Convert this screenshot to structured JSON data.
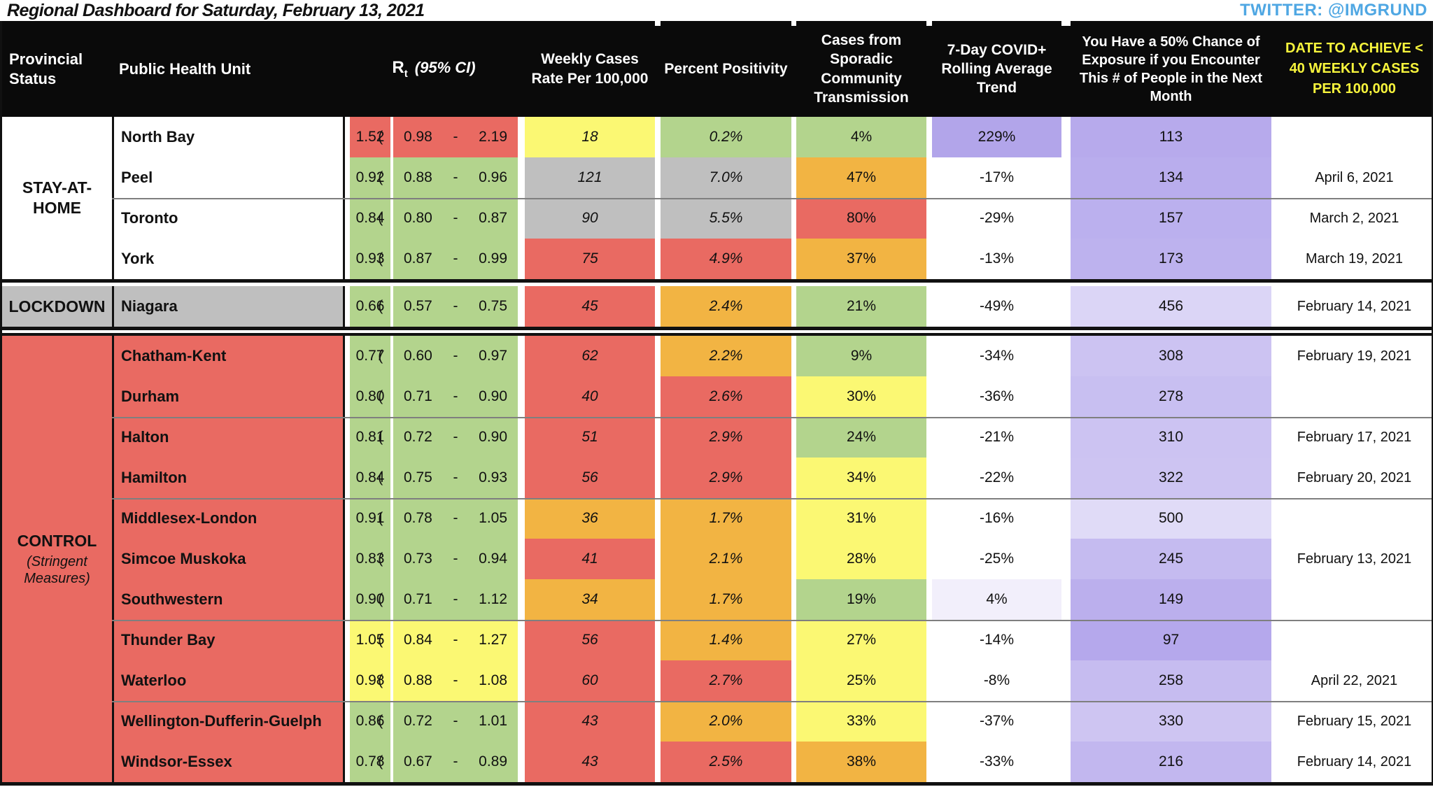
{
  "page": {
    "title": "Regional Dashboard for Saturday, February 13, 2021",
    "twitter": "TWITTER: @IMGRUND"
  },
  "colors": {
    "red": "#E96A62",
    "orange": "#F2B443",
    "yellow": "#FBF873",
    "green": "#B3D48D",
    "gray": "#BFBFBF",
    "white": "#FFFFFF",
    "purple": "#B2A5EA",
    "header_black": "#0A0A0A",
    "header_yellow_text": "#F7F43C",
    "twitter_blue": "#4FA7E3",
    "divider_gray": "#7F7F7F"
  },
  "table": {
    "headers": {
      "provincial_status": "Provincial Status",
      "public_health_unit": "Public Health Unit",
      "rt": "R",
      "rt_sub": "t",
      "rt_ci": "(95% CI)",
      "weekly_cases": "Weekly Cases Rate Per 100,000",
      "percent_positivity": "Percent Positivity",
      "sporadic": "Cases from Sporadic Community Transmission",
      "trend": "7-Day COVID+ Rolling Average Trend",
      "exposure": "You Have a 50% Chance of Exposure if you Encounter This # of People in the Next Month",
      "date_achieve": "DATE TO ACHIEVE < 40 WEEKLY CASES PER 100,000"
    },
    "sections": [
      {
        "status": "STAY-AT-HOME",
        "status_bg": "white",
        "rows": [
          {
            "name": "North Bay",
            "name_bg": "white",
            "rt": "1.52",
            "rt_c": "red",
            "ci": "(  0.98  -  2.19  )",
            "weekly": "18",
            "weekly_c": "yellow",
            "pos": "0.2%",
            "pos_c": "green",
            "spor": "4%",
            "spor_c": "green",
            "trend": "229%",
            "trend_bg": "#B2A5EA",
            "exp": "113",
            "exp_bg": "#B7AAEC",
            "date": ""
          },
          {
            "name": "Peel",
            "name_bg": "white",
            "rt": "0.92",
            "rt_c": "green",
            "ci": "(  0.88  -  0.96  )",
            "weekly": "121",
            "weekly_c": "gray",
            "pos": "7.0%",
            "pos_c": "gray",
            "spor": "47%",
            "spor_c": "orange",
            "trend": "-17%",
            "trend_bg": "#FFFFFF",
            "exp": "134",
            "exp_bg": "#B9ADED",
            "date": "April 6, 2021"
          },
          {
            "name": "Toronto",
            "name_bg": "white",
            "div": true,
            "rt": "0.84",
            "rt_c": "green",
            "ci": "(  0.80  -  0.87  )",
            "weekly": "90",
            "weekly_c": "gray",
            "pos": "5.5%",
            "pos_c": "gray",
            "spor": "80%",
            "spor_c": "red",
            "trend": "-29%",
            "trend_bg": "#FFFFFF",
            "exp": "157",
            "exp_bg": "#BBB0EE",
            "date": "March 2, 2021"
          },
          {
            "name": "York",
            "name_bg": "white",
            "rt": "0.93",
            "rt_c": "green",
            "ci": "(  0.87  -  0.99  )",
            "weekly": "75",
            "weekly_c": "red",
            "pos": "4.9%",
            "pos_c": "red",
            "spor": "37%",
            "spor_c": "orange",
            "trend": "-13%",
            "trend_bg": "#FFFFFF",
            "exp": "173",
            "exp_bg": "#BDB2EE",
            "date": "March 19, 2021"
          }
        ]
      },
      {
        "status": "LOCKDOWN",
        "status_bg": "gray",
        "rows": [
          {
            "name": "Niagara",
            "name_bg": "gray",
            "rt": "0.66",
            "rt_c": "green",
            "ci": "(  0.57  -  0.75  )",
            "weekly": "45",
            "weekly_c": "red",
            "pos": "2.4%",
            "pos_c": "orange",
            "spor": "21%",
            "spor_c": "green",
            "trend": "-49%",
            "trend_bg": "#FFFFFF",
            "exp": "456",
            "exp_bg": "#DBD5F6",
            "date": "February 14, 2021"
          }
        ]
      },
      {
        "status": "CONTROL",
        "status_sub": "(Stringent Measures)",
        "status_bg": "red",
        "rows": [
          {
            "name": "Chatham-Kent",
            "name_bg": "red",
            "rt": "0.77",
            "rt_c": "green",
            "ci": "(  0.60  -  0.97  )",
            "weekly": "62",
            "weekly_c": "red",
            "pos": "2.2%",
            "pos_c": "orange",
            "spor": "9%",
            "spor_c": "green",
            "trend": "-34%",
            "trend_bg": "#FFFFFF",
            "exp": "308",
            "exp_bg": "#CCC3F2",
            "date": "February 19, 2021"
          },
          {
            "name": "Durham",
            "name_bg": "red",
            "rt": "0.80",
            "rt_c": "green",
            "ci": "(  0.71  -  0.90  )",
            "weekly": "40",
            "weekly_c": "red",
            "pos": "2.6%",
            "pos_c": "red",
            "spor": "30%",
            "spor_c": "yellow",
            "trend": "-36%",
            "trend_bg": "#FFFFFF",
            "exp": "278",
            "exp_bg": "#C8BFF1",
            "date": ""
          },
          {
            "name": "Halton",
            "name_bg": "red",
            "div": true,
            "rt": "0.81",
            "rt_c": "green",
            "ci": "(  0.72  -  0.90  )",
            "weekly": "51",
            "weekly_c": "red",
            "pos": "2.9%",
            "pos_c": "red",
            "spor": "24%",
            "spor_c": "green",
            "trend": "-21%",
            "trend_bg": "#FFFFFF",
            "exp": "310",
            "exp_bg": "#CCC3F2",
            "date": "February 17, 2021"
          },
          {
            "name": "Hamilton",
            "name_bg": "red",
            "rt": "0.84",
            "rt_c": "green",
            "ci": "(  0.75  -  0.93  )",
            "weekly": "56",
            "weekly_c": "red",
            "pos": "2.9%",
            "pos_c": "red",
            "spor": "34%",
            "spor_c": "yellow",
            "trend": "-22%",
            "trend_bg": "#FFFFFF",
            "exp": "322",
            "exp_bg": "#CDC4F2",
            "date": "February 20, 2021"
          },
          {
            "name": "Middlesex-London",
            "name_bg": "red",
            "div": true,
            "rt": "0.91",
            "rt_c": "green",
            "ci": "(  0.78  -  1.05  )",
            "weekly": "36",
            "weekly_c": "orange",
            "pos": "1.7%",
            "pos_c": "orange",
            "spor": "31%",
            "spor_c": "yellow",
            "trend": "-16%",
            "trend_bg": "#FFFFFF",
            "exp": "500",
            "exp_bg": "#E0DBF7",
            "date": ""
          },
          {
            "name": "Simcoe Muskoka",
            "name_bg": "red",
            "rt": "0.83",
            "rt_c": "green",
            "ci": "(  0.73  -  0.94  )",
            "weekly": "41",
            "weekly_c": "red",
            "pos": "2.1%",
            "pos_c": "orange",
            "spor": "28%",
            "spor_c": "yellow",
            "trend": "-25%",
            "trend_bg": "#FFFFFF",
            "exp": "245",
            "exp_bg": "#C5BBF0",
            "date": "February 13, 2021"
          },
          {
            "name": "Southwestern",
            "name_bg": "red",
            "rt": "0.90",
            "rt_c": "green",
            "ci": "(  0.71  -  1.12  )",
            "weekly": "34",
            "weekly_c": "orange",
            "pos": "1.7%",
            "pos_c": "orange",
            "spor": "19%",
            "spor_c": "green",
            "trend": "4%",
            "trend_bg": "#F2EFFB",
            "exp": "149",
            "exp_bg": "#BBAFED",
            "date": ""
          },
          {
            "name": "Thunder Bay",
            "name_bg": "red",
            "div": true,
            "rt": "1.05",
            "rt_c": "yellow",
            "ci": "(  0.84  -  1.27  )",
            "weekly": "56",
            "weekly_c": "red",
            "pos": "1.4%",
            "pos_c": "orange",
            "spor": "27%",
            "spor_c": "yellow",
            "trend": "-14%",
            "trend_bg": "#FFFFFF",
            "exp": "97",
            "exp_bg": "#B5A8EC",
            "date": ""
          },
          {
            "name": "Waterloo",
            "name_bg": "red",
            "rt": "0.98",
            "rt_c": "yellow",
            "ci": "(  0.88  -  1.08  )",
            "weekly": "60",
            "weekly_c": "red",
            "pos": "2.7%",
            "pos_c": "red",
            "spor": "25%",
            "spor_c": "yellow",
            "trend": "-8%",
            "trend_bg": "#FFFFFF",
            "exp": "258",
            "exp_bg": "#C6BCF0",
            "date": "April 22, 2021"
          },
          {
            "name": "Wellington-Dufferin-Guelph",
            "name_bg": "red",
            "div": true,
            "rt": "0.86",
            "rt_c": "green",
            "ci": "(  0.72  -  1.01  )",
            "weekly": "43",
            "weekly_c": "red",
            "pos": "2.0%",
            "pos_c": "orange",
            "spor": "33%",
            "spor_c": "yellow",
            "trend": "-37%",
            "trend_bg": "#FFFFFF",
            "exp": "330",
            "exp_bg": "#CEC5F2",
            "date": "February 15, 2021"
          },
          {
            "name": "Windsor-Essex",
            "name_bg": "red",
            "rt": "0.78",
            "rt_c": "green",
            "ci": "(  0.67  -  0.89  )",
            "weekly": "43",
            "weekly_c": "red",
            "pos": "2.5%",
            "pos_c": "red",
            "spor": "38%",
            "spor_c": "orange",
            "trend": "-33%",
            "trend_bg": "#FFFFFF",
            "exp": "216",
            "exp_bg": "#C2B7EF",
            "date": "February 14, 2021"
          }
        ]
      }
    ]
  },
  "chart_data": {
    "type": "table",
    "title": "Regional Dashboard for Saturday, February 13, 2021",
    "columns": [
      "Provincial Status",
      "Public Health Unit",
      "Rt",
      "95% CI",
      "Weekly Cases Rate Per 100,000",
      "Percent Positivity",
      "Cases from Sporadic Community Transmission",
      "7-Day COVID+ Rolling Average Trend",
      "50% Chance of Exposure # of People",
      "Date to Achieve < 40 Weekly Cases per 100,000"
    ],
    "rows": [
      [
        "STAY-AT-HOME",
        "North Bay",
        1.52,
        "0.98 - 2.19",
        18,
        "0.2%",
        "4%",
        "229%",
        113,
        ""
      ],
      [
        "STAY-AT-HOME",
        "Peel",
        0.92,
        "0.88 - 0.96",
        121,
        "7.0%",
        "47%",
        "-17%",
        134,
        "April 6, 2021"
      ],
      [
        "STAY-AT-HOME",
        "Toronto",
        0.84,
        "0.80 - 0.87",
        90,
        "5.5%",
        "80%",
        "-29%",
        157,
        "March 2, 2021"
      ],
      [
        "STAY-AT-HOME",
        "York",
        0.93,
        "0.87 - 0.99",
        75,
        "4.9%",
        "37%",
        "-13%",
        173,
        "March 19, 2021"
      ],
      [
        "LOCKDOWN",
        "Niagara",
        0.66,
        "0.57 - 0.75",
        45,
        "2.4%",
        "21%",
        "-49%",
        456,
        "February 14, 2021"
      ],
      [
        "CONTROL (Stringent Measures)",
        "Chatham-Kent",
        0.77,
        "0.60 - 0.97",
        62,
        "2.2%",
        "9%",
        "-34%",
        308,
        "February 19, 2021"
      ],
      [
        "CONTROL (Stringent Measures)",
        "Durham",
        0.8,
        "0.71 - 0.90",
        40,
        "2.6%",
        "30%",
        "-36%",
        278,
        ""
      ],
      [
        "CONTROL (Stringent Measures)",
        "Halton",
        0.81,
        "0.72 - 0.90",
        51,
        "2.9%",
        "24%",
        "-21%",
        310,
        "February 17, 2021"
      ],
      [
        "CONTROL (Stringent Measures)",
        "Hamilton",
        0.84,
        "0.75 - 0.93",
        56,
        "2.9%",
        "34%",
        "-22%",
        322,
        "February 20, 2021"
      ],
      [
        "CONTROL (Stringent Measures)",
        "Middlesex-London",
        0.91,
        "0.78 - 1.05",
        36,
        "1.7%",
        "31%",
        "-16%",
        500,
        ""
      ],
      [
        "CONTROL (Stringent Measures)",
        "Simcoe Muskoka",
        0.83,
        "0.73 - 0.94",
        41,
        "2.1%",
        "28%",
        "-25%",
        245,
        "February 13, 2021"
      ],
      [
        "CONTROL (Stringent Measures)",
        "Southwestern",
        0.9,
        "0.71 - 1.12",
        34,
        "1.7%",
        "19%",
        "4%",
        149,
        ""
      ],
      [
        "CONTROL (Stringent Measures)",
        "Thunder Bay",
        1.05,
        "0.84 - 1.27",
        56,
        "1.4%",
        "27%",
        "-14%",
        97,
        ""
      ],
      [
        "CONTROL (Stringent Measures)",
        "Waterloo",
        0.98,
        "0.88 - 1.08",
        60,
        "2.7%",
        "25%",
        "-8%",
        258,
        "April 22, 2021"
      ],
      [
        "CONTROL (Stringent Measures)",
        "Wellington-Dufferin-Guelph",
        0.86,
        "0.72 - 1.01",
        43,
        "2.0%",
        "33%",
        "-37%",
        330,
        "February 15, 2021"
      ],
      [
        "CONTROL (Stringent Measures)",
        "Windsor-Essex",
        0.78,
        "0.67 - 0.89",
        43,
        "2.5%",
        "38%",
        "-33%",
        216,
        "February 14, 2021"
      ]
    ]
  }
}
